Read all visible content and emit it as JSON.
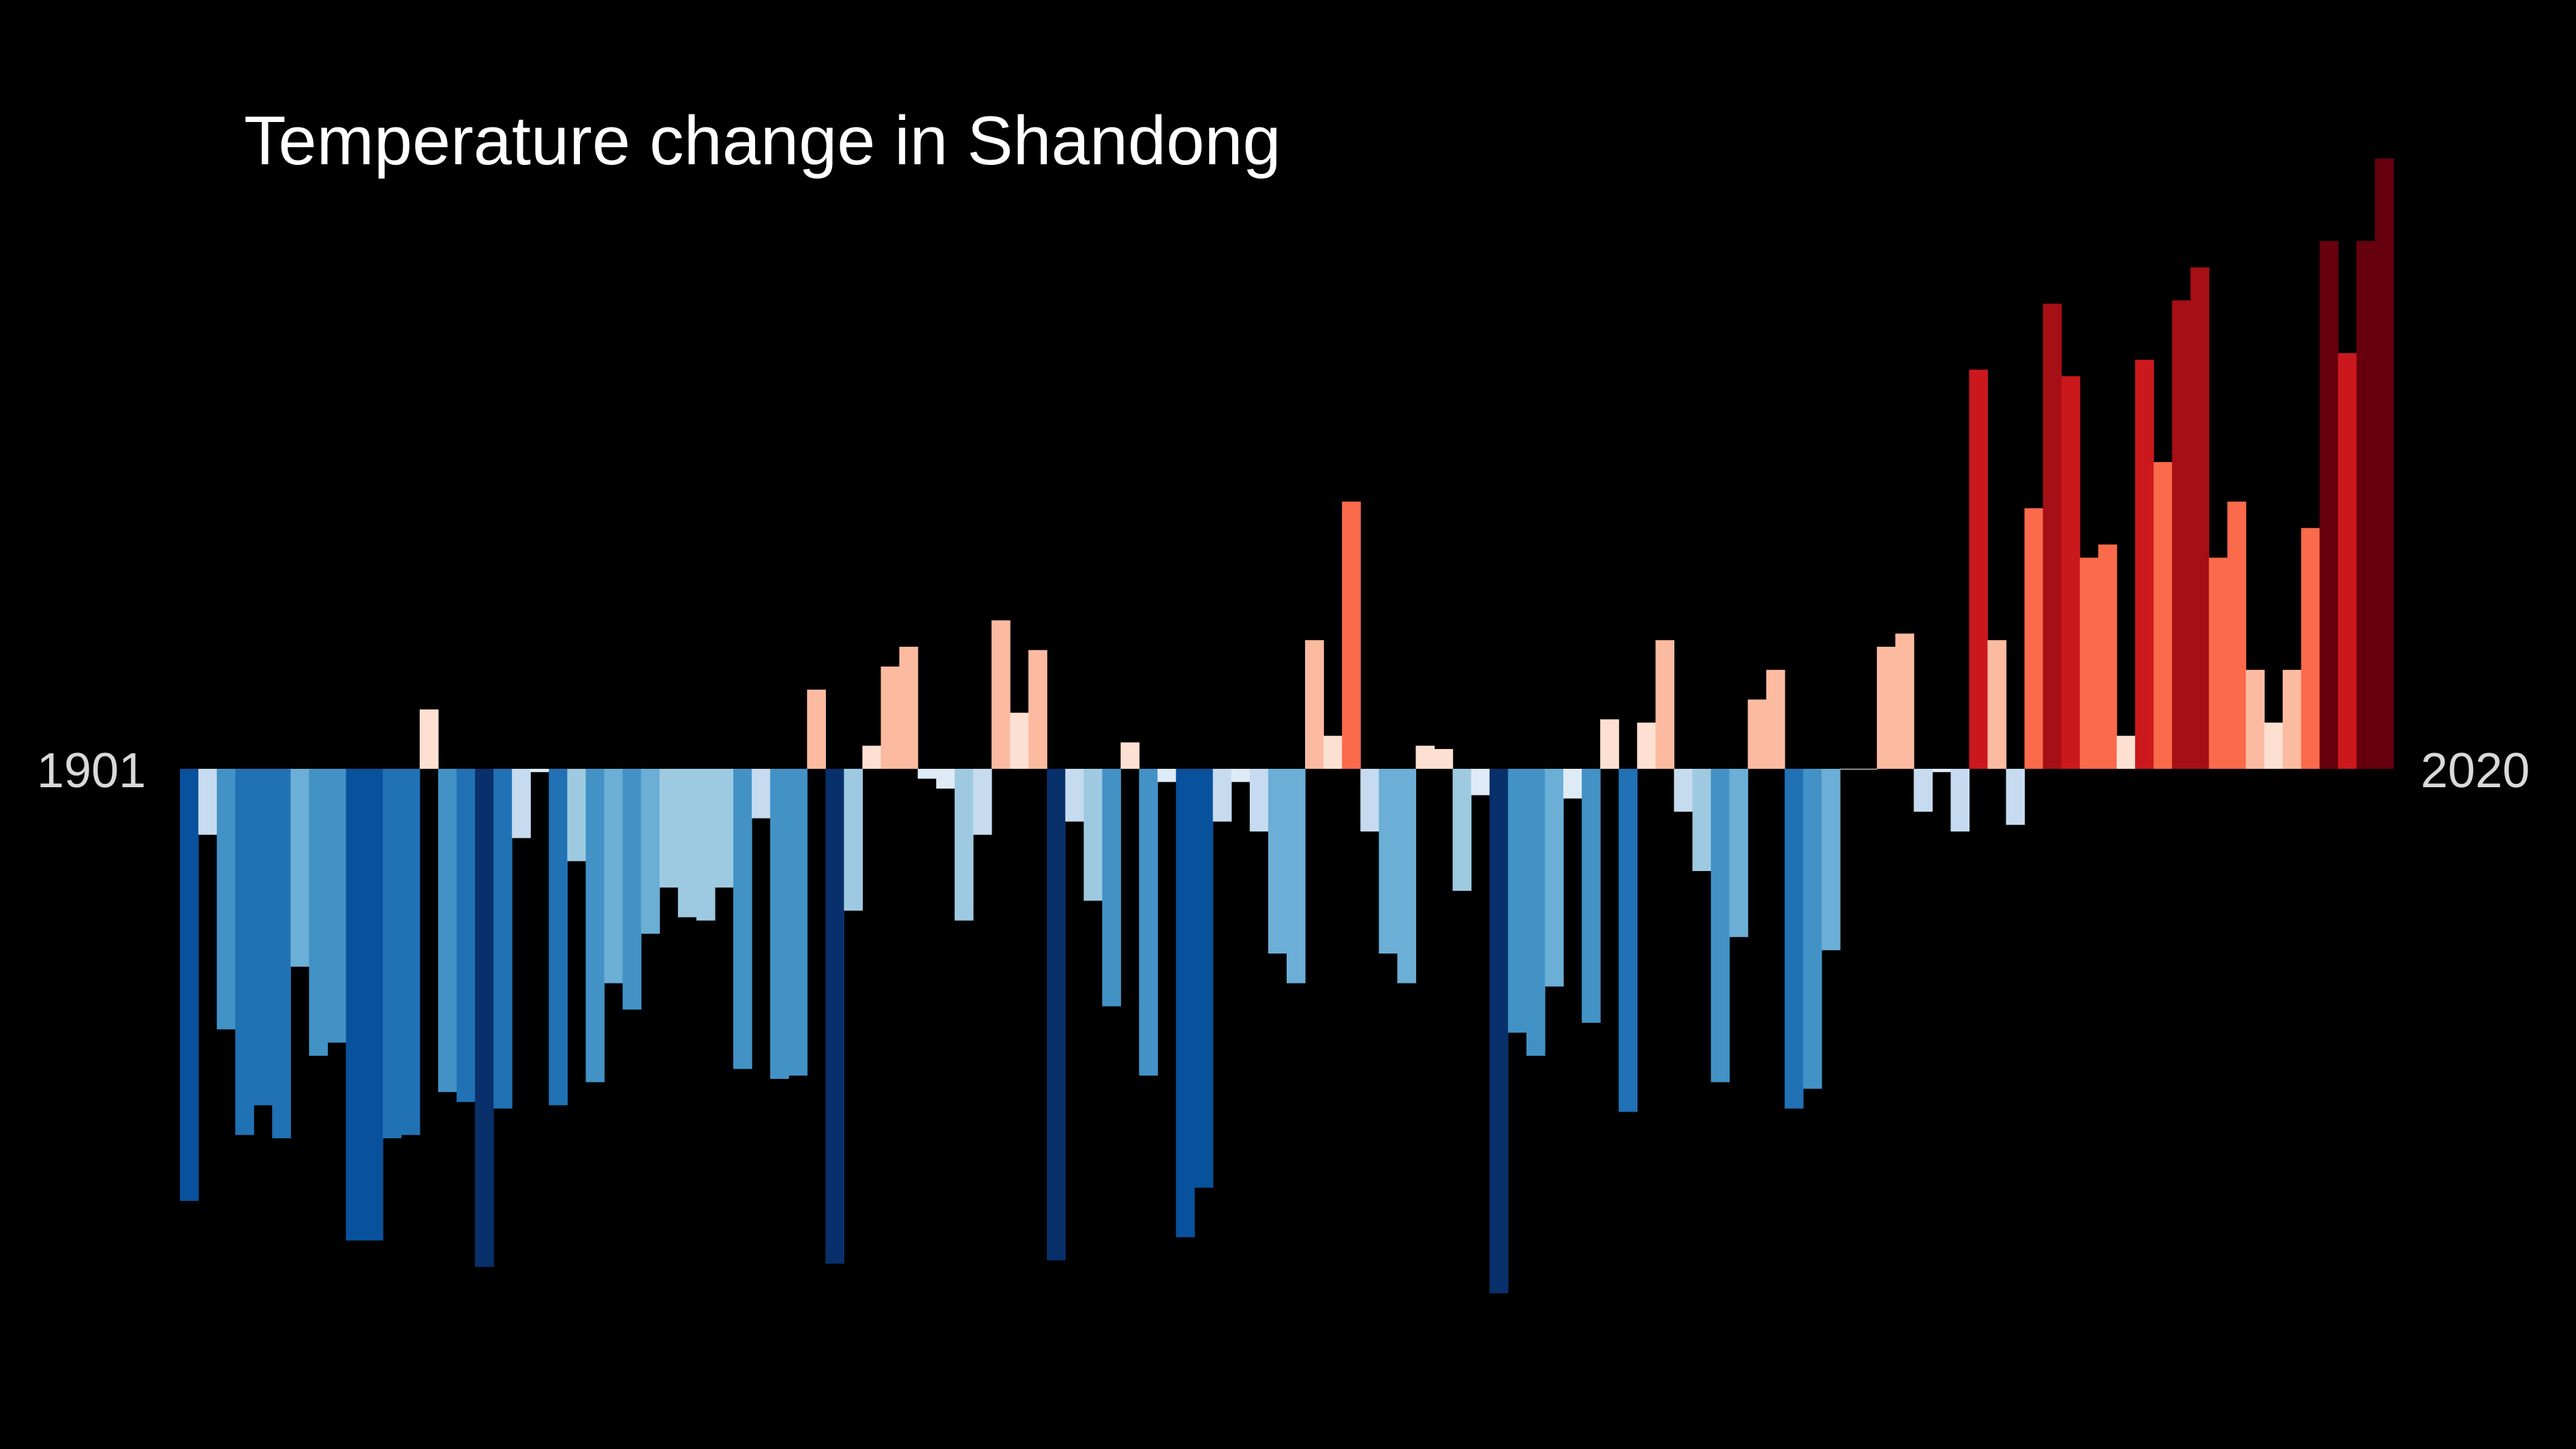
{
  "chart_data": {
    "type": "bar",
    "title": "Temperature change in Shandong",
    "x_start_label": "1901",
    "x_end_label": "2020",
    "x_start": 1901,
    "x_end": 2020,
    "ylim": [
      -1.6,
      1.85
    ],
    "y_unit": "relative anomaly (no axis printed)",
    "values": [
      -1.31,
      -0.2,
      -0.79,
      -1.11,
      -1.02,
      -1.12,
      -0.6,
      -0.87,
      -0.83,
      -1.43,
      -1.43,
      -1.12,
      -1.11,
      0.18,
      -0.98,
      -1.01,
      -1.51,
      -1.03,
      -0.21,
      -0.01,
      -1.02,
      -0.28,
      -0.95,
      -0.65,
      -0.73,
      -0.5,
      -0.36,
      -0.45,
      -0.46,
      -0.36,
      -0.91,
      -0.15,
      -0.94,
      -0.93,
      0.24,
      -1.5,
      -0.43,
      0.07,
      0.31,
      0.37,
      -0.03,
      -0.06,
      -0.46,
      -0.2,
      0.45,
      0.17,
      0.36,
      -1.49,
      -0.16,
      -0.4,
      -0.72,
      0.08,
      -0.93,
      -0.04,
      -1.42,
      -1.27,
      -0.16,
      -0.04,
      -0.19,
      -0.56,
      -0.65,
      0.39,
      0.1,
      0.81,
      -0.19,
      -0.56,
      -0.65,
      0.07,
      0.06,
      -0.37,
      -0.08,
      -1.59,
      -0.8,
      -0.87,
      -0.66,
      -0.09,
      -0.77,
      0.15,
      -1.04,
      0.14,
      0.39,
      -0.13,
      -0.31,
      -0.95,
      -0.51,
      0.21,
      0.3,
      -1.03,
      -0.97,
      -0.55,
      0,
      0,
      0.37,
      0.41,
      -0.13,
      -0.01,
      -0.19,
      1.21,
      0.39,
      -0.17,
      0.79,
      1.41,
      1.19,
      0.64,
      0.68,
      0.1,
      1.24,
      0.93,
      1.42,
      1.52,
      0.64,
      0.81,
      0.3,
      0.14,
      0.3,
      0.73,
      1.6,
      1.26,
      1.6,
      1.85
    ]
  }
}
